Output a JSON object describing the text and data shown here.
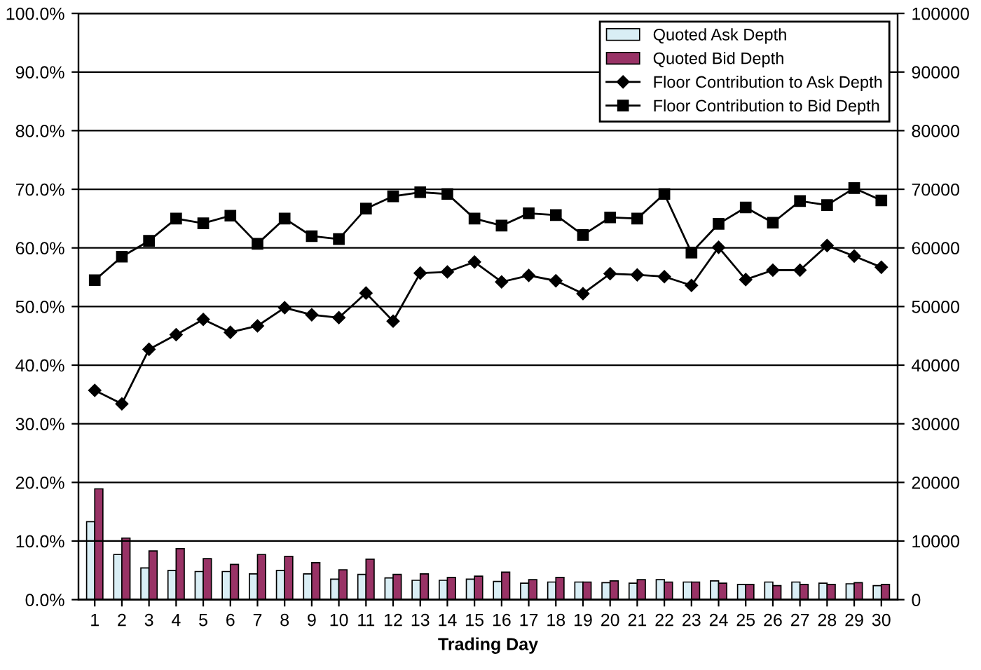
{
  "chart_data": {
    "type": "bar",
    "xlabel": "Trading Day",
    "categories": [
      "1",
      "2",
      "3",
      "4",
      "5",
      "6",
      "7",
      "8",
      "9",
      "10",
      "11",
      "12",
      "13",
      "14",
      "15",
      "16",
      "17",
      "18",
      "19",
      "20",
      "21",
      "22",
      "23",
      "24",
      "25",
      "26",
      "27",
      "28",
      "29",
      "30"
    ],
    "series": [
      {
        "name": "Quoted Ask Depth",
        "axis": "y2",
        "color": "#d9eef5",
        "values": [
          13300,
          7700,
          5400,
          5000,
          4800,
          4800,
          4400,
          5000,
          4400,
          3500,
          4300,
          3700,
          3300,
          3300,
          3500,
          3100,
          2800,
          3000,
          3000,
          2900,
          2800,
          3400,
          3000,
          3200,
          2600,
          3000,
          3000,
          2800,
          2700,
          2400
        ]
      },
      {
        "name": "Quoted Bid Depth",
        "axis": "y2",
        "color": "#993366",
        "values": [
          18900,
          10500,
          8300,
          8700,
          7000,
          6000,
          7700,
          7400,
          6300,
          5100,
          6900,
          4300,
          4400,
          3800,
          4000,
          4700,
          3400,
          3800,
          3000,
          3200,
          3400,
          3000,
          3000,
          2800,
          2600,
          2400,
          2600,
          2600,
          2900,
          2600
        ]
      },
      {
        "name": "Floor Contribution to Ask Depth",
        "type": "line",
        "axis": "y",
        "color": "#000000",
        "marker": "diamond",
        "values": [
          35.7,
          33.4,
          42.7,
          45.2,
          47.8,
          45.6,
          46.7,
          49.8,
          48.6,
          48.1,
          52.3,
          47.5,
          55.7,
          55.9,
          57.6,
          54.2,
          55.3,
          54.4,
          52.2,
          55.6,
          55.4,
          55.1,
          53.6,
          60.1,
          54.6,
          56.2,
          56.2,
          60.4,
          58.6,
          56.7
        ]
      },
      {
        "name": "Floor Contribution to Bid Depth",
        "type": "line",
        "axis": "y",
        "color": "#000000",
        "marker": "square",
        "values": [
          54.5,
          58.5,
          61.2,
          65.0,
          64.2,
          65.5,
          60.7,
          65.0,
          62.0,
          61.5,
          66.7,
          68.8,
          69.5,
          69.2,
          65.0,
          63.8,
          65.9,
          65.6,
          62.2,
          65.2,
          65.0,
          69.2,
          59.2,
          64.1,
          66.9,
          64.3,
          68.0,
          67.3,
          70.2,
          68.1
        ]
      }
    ],
    "ylim": [
      0,
      100
    ],
    "yticks": [
      {
        "value": 0,
        "label": "0.0%"
      },
      {
        "value": 10,
        "label": "10.0%"
      },
      {
        "value": 20,
        "label": "20.0%"
      },
      {
        "value": 30,
        "label": "30.0%"
      },
      {
        "value": 40,
        "label": "40.0%"
      },
      {
        "value": 50,
        "label": "50.0%"
      },
      {
        "value": 60,
        "label": "60.0%"
      },
      {
        "value": 70,
        "label": "70.0%"
      },
      {
        "value": 80,
        "label": "80.0%"
      },
      {
        "value": 90,
        "label": "90.0%"
      },
      {
        "value": 100,
        "label": "100.0%"
      }
    ],
    "y2lim": [
      0,
      100000
    ],
    "y2ticks": [
      0,
      10000,
      20000,
      30000,
      40000,
      50000,
      60000,
      70000,
      80000,
      90000,
      100000
    ],
    "grid": "y",
    "legend": "top right"
  }
}
